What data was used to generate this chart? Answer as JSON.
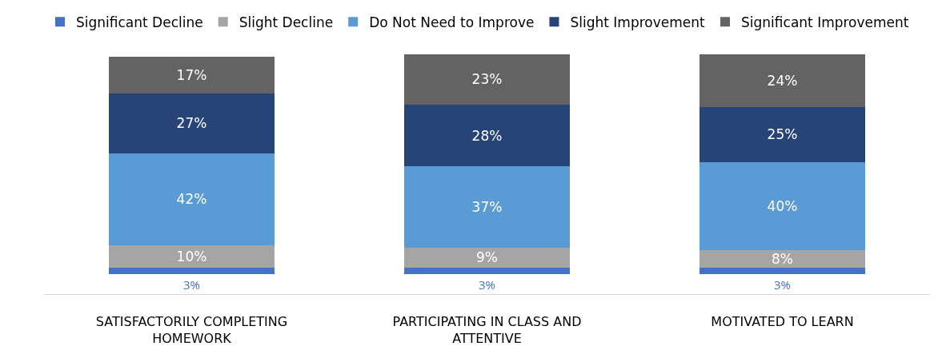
{
  "chart_data": {
    "type": "bar",
    "stacked": true,
    "legend": "top",
    "categories": [
      "SATISFACTORILY COMPLETING HOMEWORK",
      "PARTICIPATING IN CLASS AND ATTENTIVE",
      "MOTIVATED TO LEARN"
    ],
    "series": [
      {
        "name": "Significant Decline",
        "color": "#4472c4",
        "values": [
          3,
          3,
          3
        ],
        "value_labels": [
          "3%",
          "3%",
          "3%"
        ]
      },
      {
        "name": "Slight Decline",
        "color": "#a5a5a5",
        "values": [
          10,
          9,
          8
        ],
        "value_labels": [
          "10%",
          "9%",
          "8%"
        ]
      },
      {
        "name": "Do Not Need to Improve",
        "color": "#5b9bd5",
        "values": [
          42,
          37,
          40
        ],
        "value_labels": [
          "42%",
          "37%",
          "40%"
        ]
      },
      {
        "name": "Slight Improvement",
        "color": "#264478",
        "values": [
          27,
          28,
          25
        ],
        "value_labels": [
          "27%",
          "28%",
          "25%"
        ]
      },
      {
        "name": "Significant Improvement",
        "color": "#636363",
        "values": [
          17,
          23,
          24
        ],
        "value_labels": [
          "17%",
          "23%",
          "24%"
        ]
      }
    ]
  }
}
